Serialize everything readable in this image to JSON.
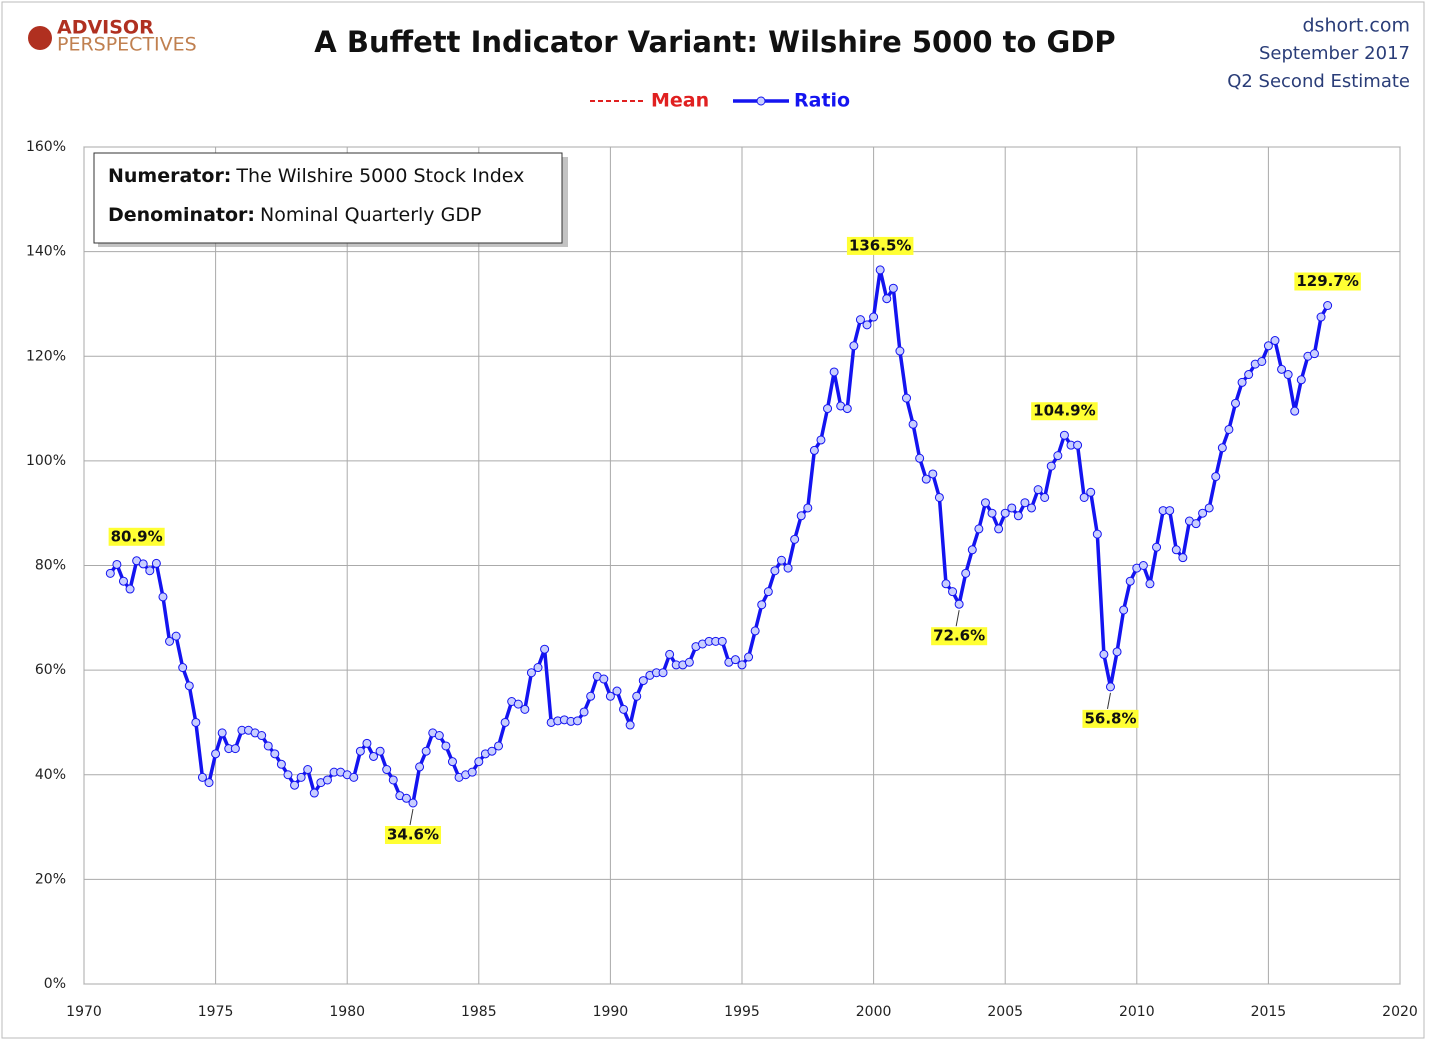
{
  "header": {
    "logo_top": "ADVISOR",
    "logo_bottom": "PERSPECTIVES",
    "site": "dshort.com",
    "date": "September 2017",
    "estimate": "Q2 Second Estimate"
  },
  "note_box": {
    "numerator_label": "Numerator:",
    "numerator_text": "The Wilshire 5000 Stock Index",
    "denominator_label": "Denominator:",
    "denominator_text": "Nominal Quarterly GDP"
  },
  "chart_data": {
    "type": "line",
    "title": "A Buffett Indicator Variant: Wilshire 5000 to GDP",
    "mean_legend": {
      "name": "Mean",
      "color": "#e02020"
    },
    "x_start": 1971,
    "x_step": 0.25,
    "series": [
      {
        "name": "Ratio",
        "color": "#1414f0",
        "marker_fill": "#c8ceff",
        "values": [
          78.5,
          80.2,
          77,
          75.5,
          80.9,
          80.3,
          79,
          80.4,
          74,
          65.5,
          66.5,
          60.5,
          57,
          50,
          39.5,
          38.5,
          44,
          48,
          45,
          45,
          48.5,
          48.5,
          48,
          47.5,
          45.5,
          44,
          42,
          40,
          38,
          39.5,
          41,
          36.5,
          38.5,
          39,
          40.5,
          40.5,
          40,
          39.5,
          44.5,
          46,
          43.5,
          44.5,
          41,
          39,
          36,
          35.5,
          34.6,
          41.5,
          44.5,
          48,
          47.5,
          45.5,
          42.5,
          39.5,
          40,
          40.5,
          42.5,
          44,
          44.5,
          45.5,
          50,
          54,
          53.5,
          52.5,
          59.5,
          60.5,
          64,
          50,
          50.3,
          50.5,
          50.2,
          50.3,
          52,
          55,
          58.8,
          58.3,
          55,
          56,
          52.5,
          49.5,
          55,
          58,
          59,
          59.5,
          59.5,
          63,
          61,
          61,
          61.5,
          64.5,
          65,
          65.5,
          65.5,
          65.5,
          61.5,
          62,
          61,
          62.5,
          67.5,
          72.5,
          75,
          79,
          81,
          79.5,
          85,
          89.5,
          91,
          102,
          104,
          110,
          117,
          110.5,
          110,
          122,
          127,
          126,
          127.5,
          136.5,
          131,
          133,
          121,
          112,
          107,
          100.5,
          96.5,
          97.5,
          93,
          76.5,
          75,
          72.6,
          78.5,
          83,
          87,
          92,
          90,
          87,
          90,
          91,
          89.5,
          92,
          91,
          94.5,
          93,
          99,
          101,
          104.9,
          103,
          103,
          93,
          94,
          86,
          63,
          56.8,
          63.5,
          71.5,
          77,
          79.5,
          80,
          76.5,
          83.5,
          90.5,
          90.5,
          83,
          81.5,
          88.5,
          88,
          90,
          91,
          97,
          102.5,
          106,
          111,
          115,
          116.5,
          118.5,
          119,
          122,
          123,
          117.5,
          116.5,
          109.5,
          115.5,
          120,
          120.5,
          127.5,
          129.7
        ]
      }
    ],
    "annotations": [
      {
        "index": 4,
        "value": 80.9,
        "label": "80.9%"
      },
      {
        "index": 46,
        "value": 34.6,
        "label": "34.6%"
      },
      {
        "index": 117,
        "value": 136.5,
        "label": "136.5%"
      },
      {
        "index": 129,
        "value": 72.6,
        "label": "72.6%"
      },
      {
        "index": 145,
        "value": 104.9,
        "label": "104.9%"
      },
      {
        "index": 152,
        "value": 56.8,
        "label": "56.8%"
      },
      {
        "index": 185,
        "value": 129.7,
        "label": "129.7%"
      }
    ],
    "xlim": [
      1970,
      2020
    ],
    "xticks": [
      1970,
      1975,
      1980,
      1985,
      1990,
      1995,
      2000,
      2005,
      2010,
      2015,
      2020
    ],
    "ylim": [
      0,
      160
    ],
    "yticks": [
      {
        "value": 0,
        "label": "0%"
      },
      {
        "value": 20,
        "label": "20%"
      },
      {
        "value": 40,
        "label": "40%"
      },
      {
        "value": 60,
        "label": "60%"
      },
      {
        "value": 80,
        "label": "80%"
      },
      {
        "value": 100,
        "label": "100%"
      },
      {
        "value": 120,
        "label": "120%"
      },
      {
        "value": 140,
        "label": "140%"
      },
      {
        "value": 160,
        "label": "160%"
      }
    ],
    "grid": true
  }
}
